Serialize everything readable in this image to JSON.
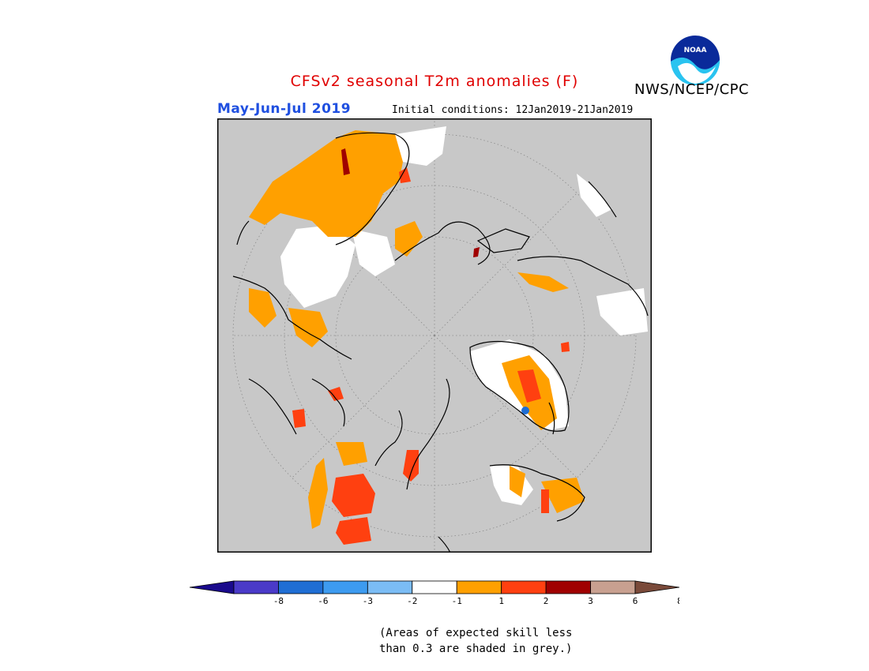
{
  "header": {
    "title": "CFSv2 seasonal T2m anomalies (F)",
    "title_color": "#e00000",
    "organization": "NWS/NCEP/CPC",
    "period": "May-Jun-Jul 2019",
    "period_color": "#1f4fe0",
    "initial_conditions": "Initial conditions: 12Jan2019-21Jan2019"
  },
  "logo": {
    "text": "NOAA",
    "icon": "noaa-logo"
  },
  "map": {
    "projection": "north-polar-stereographic",
    "background": "#c8c8c8",
    "border_color": "#000000"
  },
  "legend": {
    "colors": [
      "#1a0a8c",
      "#4a3ac8",
      "#1f6ed4",
      "#3d9bf0",
      "#7bbcf5",
      "#ffffff",
      "#ffa000",
      "#ff4010",
      "#a00000",
      "#c8a090",
      "#7a4a3a"
    ],
    "tick_labels": [
      "-8",
      "-6",
      "-3",
      "-2",
      "-1",
      "1",
      "2",
      "3",
      "6",
      "8"
    ]
  },
  "note": {
    "line1": "(Areas of expected skill less",
    "line2": "than 0.3 are shaded in grey.)"
  }
}
